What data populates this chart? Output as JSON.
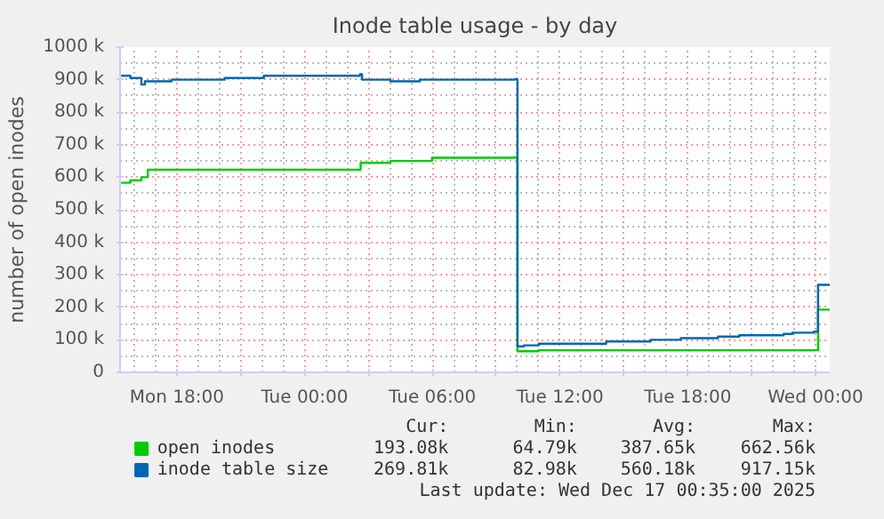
{
  "chart_data": {
    "type": "step",
    "title": "Inode table usage - by day",
    "ylabel": "number of open inodes",
    "xlim": [
      "2025-12-15T15:20",
      "2025-12-17T00:40"
    ],
    "ylim": [
      0,
      1000
    ],
    "xticks": [
      {
        "value": "2025-12-15T18:00",
        "label": "Mon 18:00"
      },
      {
        "value": "2025-12-15T21:00",
        "label": null
      },
      {
        "value": "2025-12-16T00:00",
        "label": "Tue 00:00"
      },
      {
        "value": "2025-12-16T03:00",
        "label": null
      },
      {
        "value": "2025-12-16T06:00",
        "label": "Tue 06:00"
      },
      {
        "value": "2025-12-16T09:00",
        "label": null
      },
      {
        "value": "2025-12-16T12:00",
        "label": "Tue 12:00"
      },
      {
        "value": "2025-12-16T15:00",
        "label": null
      },
      {
        "value": "2025-12-16T18:00",
        "label": "Tue 18:00"
      },
      {
        "value": "2025-12-16T21:00",
        "label": null
      },
      {
        "value": "2025-12-17T00:00",
        "label": "Wed 00:00"
      }
    ],
    "yticks": [
      0,
      {
        "value": 100,
        "label": "100 k"
      },
      {
        "value": 200,
        "label": "200 k"
      },
      {
        "value": 300,
        "label": "300 k"
      },
      {
        "value": 400,
        "label": "400 k"
      },
      {
        "value": 500,
        "label": "500 k"
      },
      {
        "value": 600,
        "label": "600 k"
      },
      {
        "value": 700,
        "label": "700 k"
      },
      {
        "value": 800,
        "label": "800 k"
      },
      {
        "value": 900,
        "label": "900 k"
      },
      {
        "value": 1000,
        "label": "1000 k"
      }
    ],
    "grid": true,
    "legend": "bottom",
    "series": [
      {
        "name": "open inodes",
        "color": "#00cc00",
        "x": [
          "2025-12-15T15:23",
          "2025-12-15T15:49",
          "2025-12-15T16:20",
          "2025-12-15T16:38",
          "2025-12-16T02:38",
          "2025-12-16T04:02",
          "2025-12-16T05:59",
          "2025-12-16T09:52",
          "2025-12-16T10:00",
          "2025-12-16T10:59",
          "2025-12-16T23:55",
          "2025-12-17T00:07",
          "2025-12-17T00:40"
        ],
        "values": [
          583,
          590,
          600,
          623,
          644,
          650,
          660,
          661,
          65,
          68,
          68,
          193,
          193
        ]
      },
      {
        "name": "inode table size",
        "color": "#0066b3",
        "x": [
          "2025-12-15T15:23",
          "2025-12-15T15:49",
          "2025-12-15T16:20",
          "2025-12-15T16:30",
          "2025-12-15T17:45",
          "2025-12-15T20:15",
          "2025-12-15T22:05",
          "2025-12-16T02:36",
          "2025-12-16T02:42",
          "2025-12-16T04:02",
          "2025-12-16T05:25",
          "2025-12-16T09:52",
          "2025-12-16T10:00",
          "2025-12-16T10:18",
          "2025-12-16T11:00",
          "2025-12-16T14:10",
          "2025-12-16T16:15",
          "2025-12-16T17:40",
          "2025-12-16T19:25",
          "2025-12-16T20:25",
          "2025-12-16T22:30",
          "2025-12-16T22:55",
          "2025-12-16T23:55",
          "2025-12-17T00:07",
          "2025-12-17T00:40"
        ],
        "values": [
          912,
          905,
          885,
          895,
          900,
          905,
          912,
          917,
          900,
          895,
          900,
          901,
          80,
          83,
          88,
          95,
          100,
          105,
          110,
          114,
          118,
          122,
          125,
          269,
          270
        ]
      }
    ],
    "annotations": [
      "Cur:",
      "Min:",
      "Avg:",
      "Max:",
      "193.08k",
      "64.79k",
      "387.65k",
      "662.56k",
      "269.81k",
      "82.98k",
      "560.18k",
      "917.15k",
      "Last update: Wed Dec 17 00:35:00 2025"
    ]
  }
}
